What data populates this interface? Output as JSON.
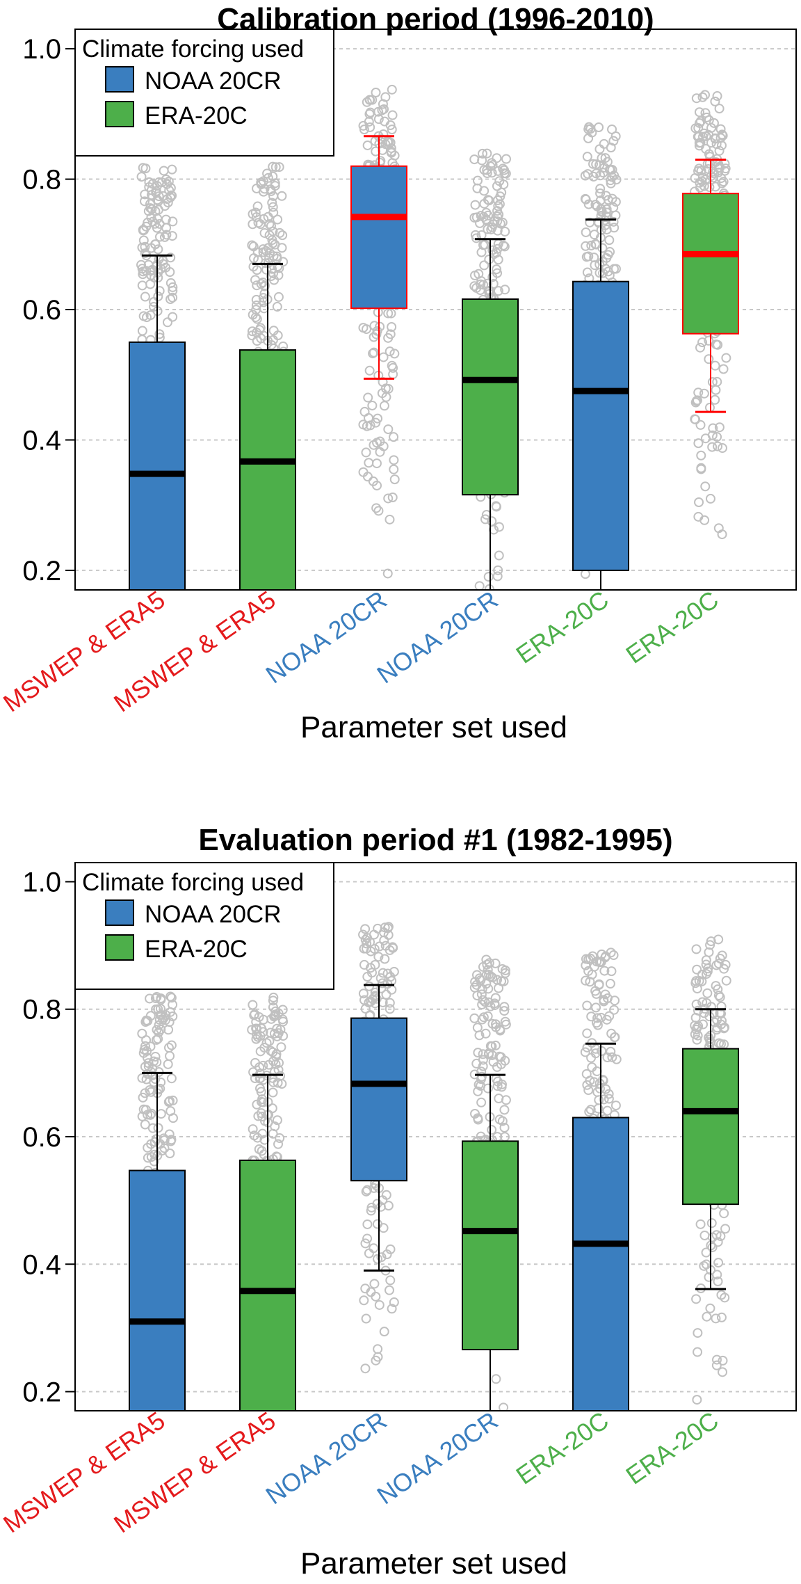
{
  "chart_data": [
    {
      "type": "box",
      "title": "Calibration period (1996-2010)",
      "xlabel": "Parameter set used",
      "ylabel": "",
      "ylim": [
        0.17,
        1.03
      ],
      "yticks": [
        "0.2",
        "0.4",
        "0.6",
        "0.8",
        "1.0"
      ],
      "ytick_values": [
        0.2,
        0.4,
        0.6,
        0.8,
        1.0
      ],
      "grid": "horizontal dashed",
      "legend": {
        "title": "Climate forcing used",
        "placement": "top-left",
        "entries": [
          {
            "label": "NOAA 20CR",
            "color": "#3a7ebf"
          },
          {
            "label": "ERA-20C",
            "color": "#4daf4a"
          }
        ]
      },
      "categories": [
        "MSWEP & ERA5",
        "MSWEP & ERA5",
        "NOAA 20CR",
        "NOAA 20CR",
        "ERA-20C",
        "ERA-20C"
      ],
      "category_colors": [
        "#e41a1c",
        "#e41a1c",
        "#3a7ebf",
        "#3a7ebf",
        "#4daf4a",
        "#4daf4a"
      ],
      "boxes": [
        {
          "forcing": "NOAA 20CR",
          "q1": 0.13,
          "median": 0.348,
          "q3": 0.55,
          "whisker_high": 0.683,
          "points_max": 0.82,
          "points_min": 0.17,
          "highlight": false
        },
        {
          "forcing": "ERA-20C",
          "q1": 0.13,
          "median": 0.367,
          "q3": 0.538,
          "whisker_high": 0.67,
          "points_max": 0.82,
          "points_min": 0.17,
          "highlight": false
        },
        {
          "forcing": "NOAA 20CR",
          "q1": 0.602,
          "median": 0.742,
          "q3": 0.82,
          "whisker_low": 0.494,
          "whisker_high": 0.866,
          "points_max": 0.94,
          "points_min": 0.175,
          "highlight": true
        },
        {
          "forcing": "ERA-20C",
          "q1": 0.316,
          "median": 0.492,
          "q3": 0.616,
          "whisker_high": 0.708,
          "points_max": 0.84,
          "points_min": 0.17,
          "highlight": false
        },
        {
          "forcing": "NOAA 20CR",
          "q1": 0.2,
          "median": 0.475,
          "q3": 0.643,
          "whisker_high": 0.738,
          "points_max": 0.88,
          "points_min": 0.17,
          "highlight": false
        },
        {
          "forcing": "ERA-20C",
          "q1": 0.563,
          "median": 0.685,
          "q3": 0.778,
          "whisker_low": 0.443,
          "whisker_high": 0.83,
          "points_max": 0.93,
          "points_min": 0.195,
          "highlight": true
        }
      ]
    },
    {
      "type": "box",
      "title": "Evaluation period #1 (1982-1995)",
      "xlabel": "Parameter set used",
      "ylabel": "",
      "ylim": [
        0.17,
        1.03
      ],
      "yticks": [
        "0.2",
        "0.4",
        "0.6",
        "0.8",
        "1.0"
      ],
      "ytick_values": [
        0.2,
        0.4,
        0.6,
        0.8,
        1.0
      ],
      "grid": "horizontal dashed",
      "legend": {
        "title": "Climate forcing used",
        "placement": "top-left",
        "entries": [
          {
            "label": "NOAA 20CR",
            "color": "#3a7ebf"
          },
          {
            "label": "ERA-20C",
            "color": "#4daf4a"
          }
        ]
      },
      "categories": [
        "MSWEP & ERA5",
        "MSWEP & ERA5",
        "NOAA 20CR",
        "NOAA 20CR",
        "ERA-20C",
        "ERA-20C"
      ],
      "category_colors": [
        "#e41a1c",
        "#e41a1c",
        "#3a7ebf",
        "#3a7ebf",
        "#4daf4a",
        "#4daf4a"
      ],
      "boxes": [
        {
          "forcing": "NOAA 20CR",
          "q1": 0.13,
          "median": 0.31,
          "q3": 0.547,
          "whisker_high": 0.7,
          "points_max": 0.82,
          "points_min": 0.17,
          "highlight": false
        },
        {
          "forcing": "ERA-20C",
          "q1": 0.13,
          "median": 0.358,
          "q3": 0.563,
          "whisker_high": 0.697,
          "points_max": 0.82,
          "points_min": 0.17,
          "highlight": false
        },
        {
          "forcing": "NOAA 20CR",
          "q1": 0.531,
          "median": 0.683,
          "q3": 0.786,
          "whisker_low": 0.39,
          "whisker_high": 0.838,
          "points_max": 0.93,
          "points_min": 0.17,
          "highlight": false
        },
        {
          "forcing": "ERA-20C",
          "q1": 0.266,
          "median": 0.452,
          "q3": 0.593,
          "whisker_high": 0.697,
          "points_max": 0.88,
          "points_min": 0.17,
          "highlight": false
        },
        {
          "forcing": "NOAA 20CR",
          "q1": 0.13,
          "median": 0.432,
          "q3": 0.63,
          "whisker_high": 0.746,
          "points_max": 0.89,
          "points_min": 0.17,
          "highlight": false
        },
        {
          "forcing": "ERA-20C",
          "q1": 0.494,
          "median": 0.64,
          "q3": 0.738,
          "whisker_low": 0.361,
          "whisker_high": 0.8,
          "points_max": 0.91,
          "points_min": 0.17,
          "highlight": false
        }
      ]
    }
  ]
}
